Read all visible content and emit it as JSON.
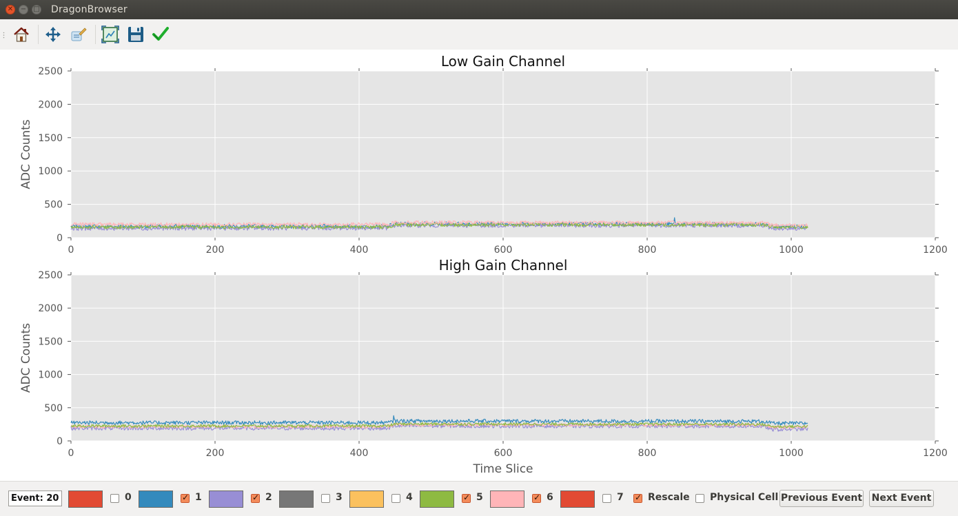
{
  "window": {
    "title": "DragonBrowser"
  },
  "toolbar": {
    "buttons": [
      {
        "name": "home",
        "icon": "home-icon"
      },
      {
        "name": "pan",
        "icon": "move-icon"
      },
      {
        "name": "configure",
        "icon": "configure-icon"
      },
      {
        "name": "zoom-fit",
        "icon": "zoom-fit-icon"
      },
      {
        "name": "save",
        "icon": "save-icon"
      },
      {
        "name": "apply",
        "icon": "check-icon"
      }
    ]
  },
  "controls": {
    "event_label": "Event: 20",
    "channels": [
      {
        "label": "0",
        "color": "#e24a33",
        "checked": false
      },
      {
        "label": "1",
        "color": "#348abd",
        "checked": true
      },
      {
        "label": "2",
        "color": "#988ed5",
        "checked": true
      },
      {
        "label": "3",
        "color": "#777777",
        "checked": false
      },
      {
        "label": "4",
        "color": "#fbc15e",
        "checked": false
      },
      {
        "label": "5",
        "color": "#8eba42",
        "checked": true
      },
      {
        "label": "6",
        "color": "#ffb5b8",
        "checked": true
      },
      {
        "label": "7",
        "color": "#e24a33",
        "checked": false
      }
    ],
    "rescale_label": "Rescale",
    "rescale_checked": true,
    "physical_cell_label": "Physical Cell",
    "physical_cell_checked": false,
    "prev_button": "Previous Event",
    "next_button": "Next Event"
  },
  "chart_data": [
    {
      "type": "line",
      "title": "Low Gain Channel",
      "ylabel": "ADC Counts",
      "xlabel": "",
      "xlim": [
        0,
        1200
      ],
      "ylim": [
        0,
        2500
      ],
      "xticks": [
        0,
        200,
        400,
        600,
        800,
        1000,
        1200
      ],
      "yticks": [
        0,
        500,
        1000,
        1500,
        2000,
        2500
      ],
      "grid": true,
      "x_range": [
        0,
        1023
      ],
      "series": [
        {
          "channel": "1",
          "color": "#348abd",
          "baseline": [
            [
              0,
              170
            ],
            [
              440,
              170
            ],
            [
              450,
              210
            ],
            [
              960,
              200
            ],
            [
              975,
              165
            ],
            [
              1023,
              165
            ]
          ],
          "noise": 30,
          "spike": [
            [
              838,
              300
            ]
          ]
        },
        {
          "channel": "2",
          "color": "#988ed5",
          "baseline": [
            [
              0,
              140
            ],
            [
              440,
              145
            ],
            [
              450,
              185
            ],
            [
              960,
              185
            ],
            [
              975,
              140
            ],
            [
              1023,
              140
            ]
          ],
          "noise": 32
        },
        {
          "channel": "5",
          "color": "#8eba42",
          "baseline": [
            [
              0,
              160
            ],
            [
              440,
              160
            ],
            [
              450,
              195
            ],
            [
              960,
              195
            ],
            [
              975,
              160
            ],
            [
              1023,
              160
            ]
          ],
          "noise": 28
        },
        {
          "channel": "6",
          "color": "#ffb5b8",
          "baseline": [
            [
              0,
              200
            ],
            [
              440,
              200
            ],
            [
              450,
              230
            ],
            [
              960,
              225
            ],
            [
              975,
              190
            ],
            [
              1023,
              190
            ]
          ],
          "noise": 26
        }
      ]
    },
    {
      "type": "line",
      "title": "High Gain Channel",
      "ylabel": "ADC Counts",
      "xlabel": "Time Slice",
      "xlim": [
        0,
        1200
      ],
      "ylim": [
        0,
        2500
      ],
      "xticks": [
        0,
        200,
        400,
        600,
        800,
        1000,
        1200
      ],
      "yticks": [
        0,
        500,
        1000,
        1500,
        2000,
        2500
      ],
      "grid": true,
      "x_range": [
        0,
        1023
      ],
      "series": [
        {
          "channel": "2",
          "color": "#988ed5",
          "baseline": [
            [
              0,
              190
            ],
            [
              440,
              190
            ],
            [
              450,
              225
            ],
            [
              960,
              220
            ],
            [
              975,
              170
            ],
            [
              1023,
              180
            ]
          ],
          "noise": 28
        },
        {
          "channel": "6",
          "color": "#ffb5b8",
          "baseline": [
            [
              0,
              215
            ],
            [
              440,
              215
            ],
            [
              450,
              245
            ],
            [
              960,
              240
            ],
            [
              975,
              205
            ],
            [
              1023,
              210
            ]
          ],
          "noise": 24
        },
        {
          "channel": "5",
          "color": "#8eba42",
          "baseline": [
            [
              0,
              225
            ],
            [
              440,
              225
            ],
            [
              450,
              255
            ],
            [
              960,
              250
            ],
            [
              975,
              215
            ],
            [
              1023,
              220
            ]
          ],
          "noise": 22
        },
        {
          "channel": "1",
          "color": "#348abd",
          "baseline": [
            [
              0,
              275
            ],
            [
              440,
              275
            ],
            [
              450,
              300
            ],
            [
              960,
              295
            ],
            [
              975,
              265
            ],
            [
              1023,
              265
            ]
          ],
          "noise": 28,
          "spike": [
            [
              448,
              380
            ]
          ]
        }
      ]
    }
  ]
}
